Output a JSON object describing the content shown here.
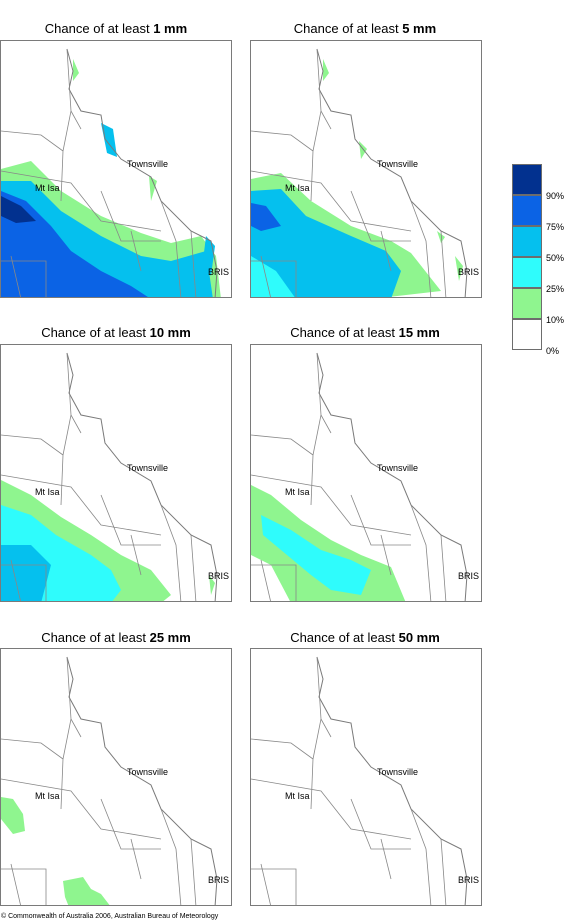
{
  "panels": [
    {
      "prefix": "Chance of at least",
      "value": "1 mm"
    },
    {
      "prefix": "Chance of at least",
      "value": "5 mm"
    },
    {
      "prefix": "Chance of at least",
      "value": "10 mm"
    },
    {
      "prefix": "Chance of at least",
      "value": "15 mm"
    },
    {
      "prefix": "Chance of at least",
      "value": "25 mm"
    },
    {
      "prefix": "Chance of at least",
      "value": "50 mm"
    }
  ],
  "places": {
    "townsville": "Townsville",
    "mt_isa": "Mt Isa",
    "brisbane": "BRIS"
  },
  "legend": {
    "ticks": [
      "90%",
      "75%",
      "50%",
      "25%",
      "10%",
      "0%"
    ],
    "colors": [
      "#02318f",
      "#0b63e5",
      "#05c0ee",
      "#2ffcfc",
      "#8ff58f",
      "#ffffff"
    ]
  },
  "footer": "© Commonwealth of Australia 2006, Australian Bureau of Meteorology"
}
